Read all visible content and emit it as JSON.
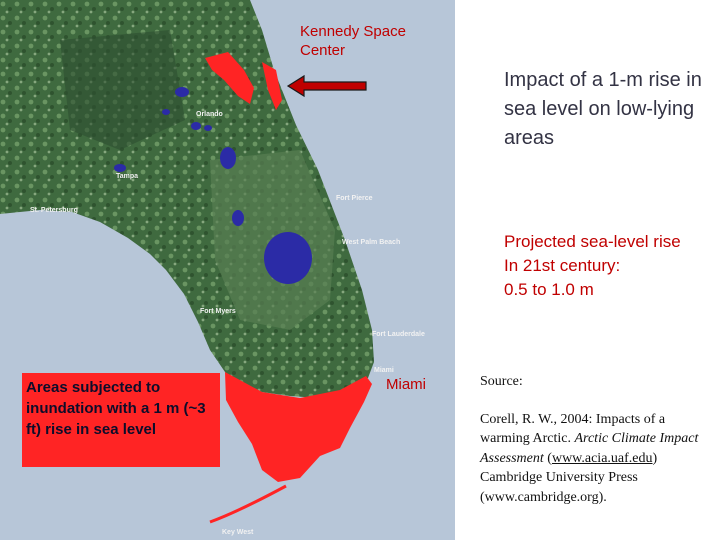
{
  "labels": {
    "kennedy_line1": "Kennedy Space",
    "kennedy_line2": "Center",
    "impact_title": "Impact of a 1-m rise in sea  level on low-lying areas",
    "projected_line1": "Projected sea-level rise",
    "projected_line2": "In 21st century:",
    "projected_line3": "0.5 to 1.0 m",
    "miami": "Miami",
    "legend": "Areas subjected to inundation with a 1 m (~3 ft) rise in sea level"
  },
  "source": {
    "heading": "Source:",
    "citation_start": "Corell, R. W., 2004:  Impacts of a warming Arctic.  ",
    "citation_title": "Arctic Climate Impact Assessment",
    "link_open": " (",
    "link": "www.acia.uaf.edu",
    "link_close": ") Cambridge University Press (www.cambridge.org)."
  },
  "map_cities": {
    "orlando": "Orlando",
    "tampa": "Tampa",
    "st_petersburg": "St. Petersburg",
    "fort_pierce": "Fort Pierce",
    "west_palm_beach": "West Palm Beach",
    "fort_myers": "Fort Myers",
    "fort_lauderdale": "Fort Lauderdale",
    "miami_small": "Miami",
    "key_west": "Key West"
  },
  "colors": {
    "ocean": "#b7c6d8",
    "land": "#3f6a3f",
    "inundation": "#ff2424",
    "lakes": "#2b2ba6",
    "label_red": "#c00000"
  }
}
